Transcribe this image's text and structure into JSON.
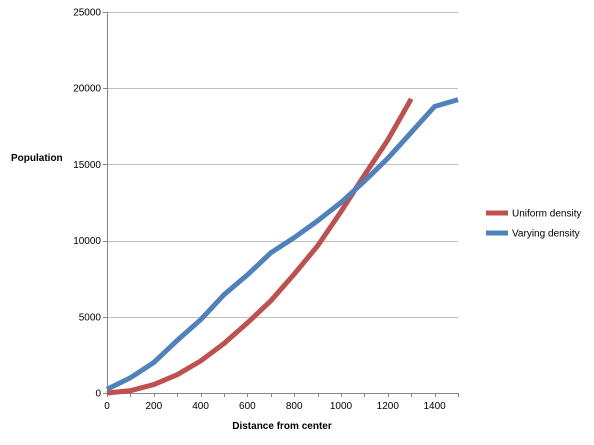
{
  "chart_data": {
    "type": "line",
    "title": "",
    "xlabel": "Distance from center",
    "ylabel": "Population",
    "xlim": [
      0,
      1500
    ],
    "ylim": [
      0,
      25000
    ],
    "x_ticks": [
      0,
      200,
      400,
      600,
      800,
      1000,
      1200,
      1400
    ],
    "y_ticks": [
      0,
      5000,
      10000,
      15000,
      20000,
      25000
    ],
    "grid": "horizontal",
    "legend": "right",
    "series": [
      {
        "name": "Uniform density",
        "color": "#c0504d",
        "x": [
          0,
          100,
          200,
          300,
          400,
          500,
          600,
          700,
          800,
          900,
          1000,
          1100,
          1200,
          1300
        ],
        "y": [
          0,
          150,
          550,
          1200,
          2100,
          3250,
          4600,
          6050,
          7800,
          9650,
          11900,
          14300,
          16600,
          19300
        ]
      },
      {
        "name": "Varying density",
        "color": "#4f81bd",
        "x": [
          0,
          100,
          200,
          300,
          400,
          500,
          600,
          700,
          800,
          900,
          1000,
          1100,
          1200,
          1300,
          1400,
          1500
        ],
        "y": [
          250,
          1000,
          2000,
          3450,
          4800,
          6450,
          7750,
          9200,
          10200,
          11300,
          12500,
          13900,
          15400,
          17100,
          18800,
          19250
        ]
      }
    ]
  }
}
